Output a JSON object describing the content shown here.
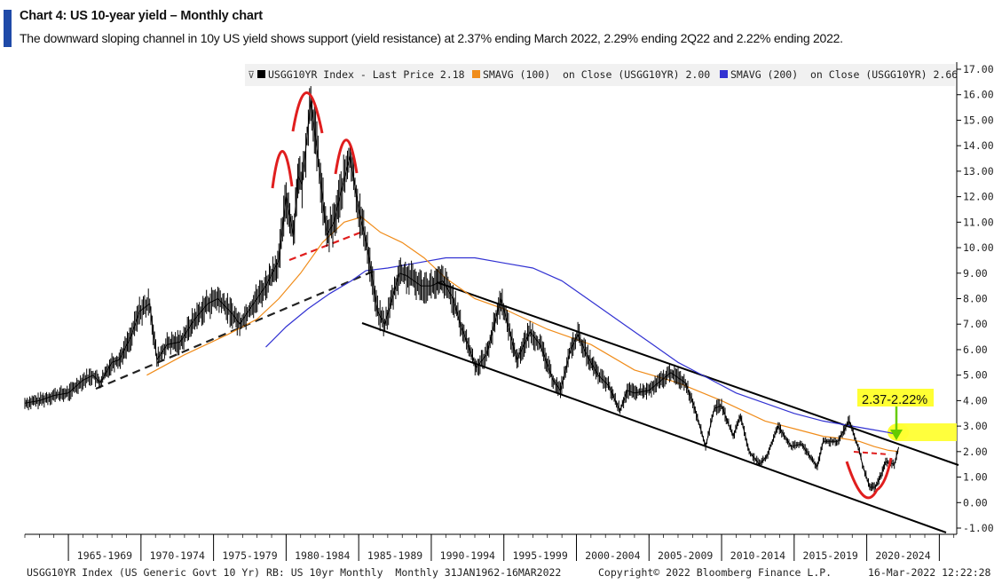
{
  "header": {
    "title": "Chart 4: US 10-year yield – Monthly chart",
    "subtitle": "The downward sloping channel in 10y US yield shows support (yield resistance) at 2.37% ending March 2022, 2.29% ending 2Q22 and 2.22% ending 2022."
  },
  "colors": {
    "price": "#000000",
    "sma100": "#f08c1a",
    "sma200": "#3232d2",
    "accent": "#1f4aa8",
    "highlight": "#ffff33",
    "annotation_red": "#e01e1e",
    "arrow_green": "#66cc00"
  },
  "chart_data": {
    "type": "line",
    "title": "",
    "xlabel": "",
    "ylabel": "",
    "x_range": [
      1962.0,
      2026.2
    ],
    "ylim": [
      -1.0,
      17.0
    ],
    "y_axis_side": "right",
    "yticks": [
      "17.00",
      "16.00",
      "15.00",
      "14.00",
      "13.00",
      "12.00",
      "11.00",
      "10.00",
      "9.00",
      "8.00",
      "7.00",
      "6.00",
      "5.00",
      "4.00",
      "3.00",
      "2.00",
      "1.00",
      "0.00",
      "-1.00"
    ],
    "xticks": [
      "1965-1969",
      "1970-1974",
      "1975-1979",
      "1980-1984",
      "1985-1989",
      "1990-1994",
      "1995-1999",
      "2000-2004",
      "2005-2009",
      "2010-2014",
      "2015-2019",
      "2020-2024"
    ],
    "legend_position": "top",
    "legend": [
      {
        "icon": "black-square",
        "text": "USGG10YR Index - Last Price 2.18"
      },
      {
        "icon": "orange-square",
        "text": "SMAVG (100)  on Close (USGG10YR) 2.00"
      },
      {
        "icon": "blue-square",
        "text": "SMAVG (200)  on Close (USGG10YR) 2.66"
      }
    ],
    "series": [
      {
        "name": "USGG10YR Index - Last Price",
        "style": "bar",
        "x": [
          1962.0,
          1963.0,
          1964.0,
          1965.0,
          1966.0,
          1966.7,
          1967.2,
          1968.0,
          1968.5,
          1969.3,
          1969.9,
          1970.6,
          1971.1,
          1971.8,
          1972.7,
          1973.7,
          1974.6,
          1975.3,
          1976.3,
          1976.8,
          1977.5,
          1978.6,
          1979.5,
          1980.0,
          1980.5,
          1980.8,
          1981.1,
          1981.7,
          1982.2,
          1982.8,
          1983.3,
          1983.7,
          1984.4,
          1985.0,
          1985.6,
          1986.3,
          1986.8,
          1987.8,
          1988.3,
          1989.3,
          1990.0,
          1990.8,
          1991.5,
          1992.0,
          1993.1,
          1993.8,
          1994.8,
          1995.4,
          1995.9,
          1996.8,
          1997.5,
          1998.4,
          1998.9,
          1999.6,
          2000.1,
          2000.7,
          2001.5,
          2002.2,
          2003.0,
          2003.5,
          2004.0,
          2005.0,
          2006.5,
          2007.5,
          2008.1,
          2008.9,
          2009.5,
          2010.0,
          2010.8,
          2011.3,
          2011.9,
          2012.6,
          2013.1,
          2013.9,
          2014.8,
          2015.5,
          2016.1,
          2016.6,
          2017.0,
          2018.0,
          2018.8,
          2019.5,
          2019.7,
          2020.2,
          2020.6,
          2021.0,
          2021.3,
          2021.9,
          2022.2
        ],
        "values": [
          3.9,
          4.0,
          4.2,
          4.3,
          4.8,
          5.0,
          4.7,
          5.5,
          5.6,
          6.5,
          7.5,
          7.8,
          5.6,
          6.2,
          6.3,
          7.2,
          7.8,
          8.0,
          7.4,
          7.0,
          7.6,
          8.5,
          9.5,
          12.0,
          10.5,
          12.8,
          12.5,
          15.8,
          13.5,
          10.5,
          11.0,
          12.0,
          13.6,
          11.5,
          10.0,
          7.5,
          7.0,
          9.0,
          8.9,
          8.5,
          8.5,
          8.7,
          8.0,
          7.0,
          5.3,
          5.8,
          8.0,
          6.7,
          5.6,
          6.7,
          6.2,
          4.8,
          4.4,
          6.0,
          6.6,
          5.8,
          5.0,
          4.6,
          3.6,
          4.4,
          4.3,
          4.4,
          5.1,
          4.7,
          3.8,
          2.2,
          3.7,
          3.8,
          2.6,
          3.4,
          2.0,
          1.5,
          1.8,
          3.0,
          2.2,
          2.3,
          1.8,
          1.4,
          2.4,
          2.4,
          3.2,
          2.0,
          1.5,
          0.6,
          0.6,
          1.1,
          1.6,
          1.5,
          2.18
        ]
      },
      {
        "name": "SMAVG (100) on Close (USGG10YR)",
        "style": "line",
        "x": [
          1970.4,
          1973.0,
          1976.0,
          1978.0,
          1979.5,
          1981.0,
          1982.5,
          1984.0,
          1985.2,
          1986.5,
          1988.0,
          1989.5,
          1991.0,
          1993.0,
          1995.0,
          1998.0,
          2001.0,
          2004.0,
          2007.0,
          2010.0,
          2013.0,
          2015.0,
          2017.0,
          2018.5,
          2019.5,
          2020.5,
          2021.5,
          2022.2
        ],
        "values": [
          5.0,
          5.8,
          6.6,
          7.2,
          8.0,
          9.0,
          10.2,
          11.0,
          11.2,
          10.6,
          10.2,
          9.6,
          8.8,
          8.0,
          7.6,
          6.8,
          6.2,
          5.2,
          4.7,
          4.0,
          3.2,
          2.9,
          2.6,
          2.5,
          2.4,
          2.2,
          2.05,
          2.0
        ]
      },
      {
        "name": "SMAVG (200) on Close (USGG10YR)",
        "style": "line",
        "x": [
          1978.6,
          1980.0,
          1981.5,
          1983.0,
          1984.5,
          1985.5,
          1987.0,
          1989.0,
          1991.0,
          1993.0,
          1995.0,
          1997.0,
          1999.0,
          2001.0,
          2003.0,
          2005.0,
          2007.0,
          2009.0,
          2011.0,
          2013.0,
          2015.0,
          2017.0,
          2019.0,
          2020.5,
          2021.5,
          2022.2
        ],
        "values": [
          6.1,
          6.9,
          7.6,
          8.2,
          8.7,
          9.1,
          9.2,
          9.4,
          9.6,
          9.6,
          9.4,
          9.2,
          8.7,
          7.9,
          7.1,
          6.3,
          5.5,
          4.9,
          4.3,
          3.9,
          3.5,
          3.2,
          3.0,
          2.85,
          2.75,
          2.66
        ]
      }
    ],
    "annotations": {
      "highlight_label": "2.37-2.22%",
      "highlight_level": [
        2.22,
        2.37
      ]
    },
    "footer": {
      "left": "USGG10YR Index (US Generic Govt 10 Yr) RB: US 10yr Monthly  Monthly 31JAN1962-16MAR2022",
      "center": "Copyright© 2022 Bloomberg Finance L.P.",
      "right": "16-Mar-2022 12:22:28"
    }
  }
}
